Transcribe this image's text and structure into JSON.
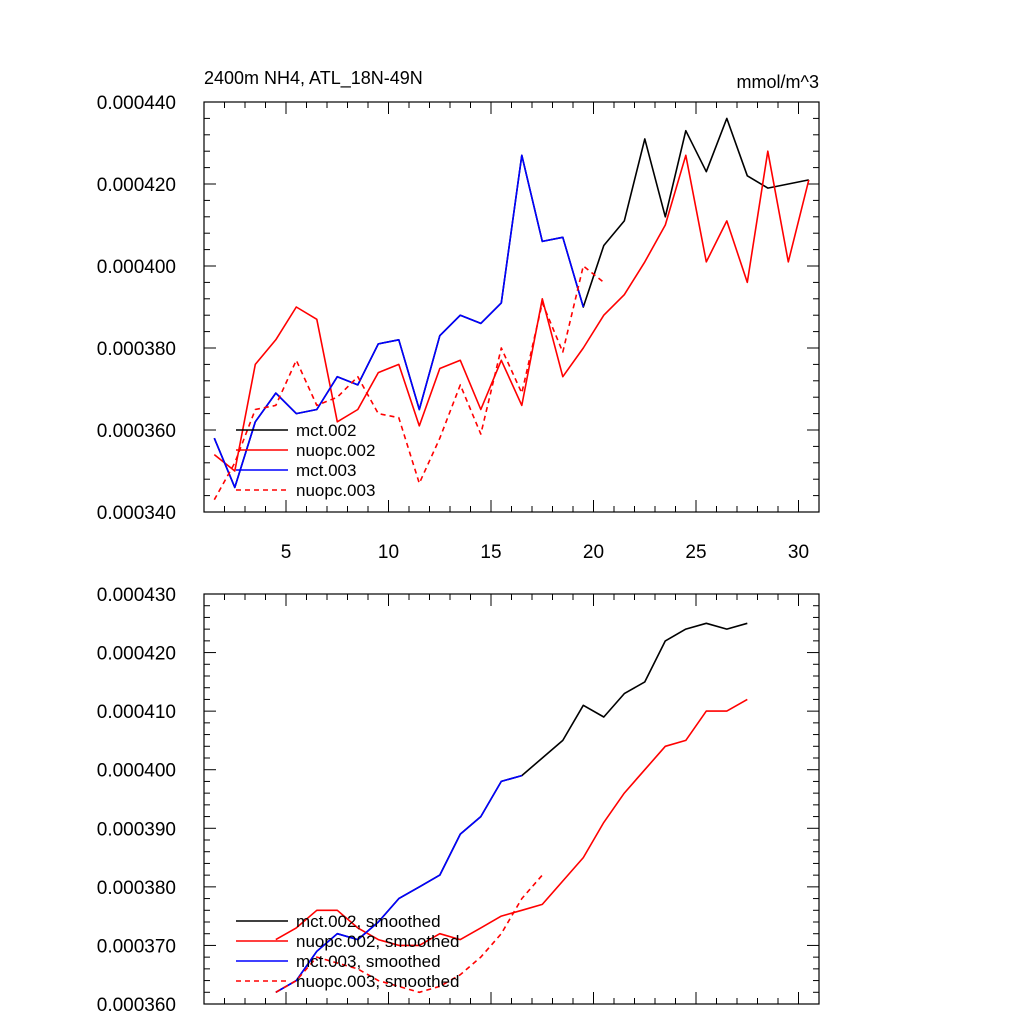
{
  "chart_data": [
    {
      "type": "line",
      "title": "2400m NH4, ATL_18N-49N",
      "units": "mmol/m^3",
      "xlabel": "",
      "ylabel": "",
      "xlim": [
        1,
        31
      ],
      "ylim": [
        0.00034,
        0.00044
      ],
      "x_ticks": [
        5,
        10,
        15,
        20,
        25,
        30
      ],
      "y_ticks": [
        "0.000340",
        "0.000360",
        "0.000380",
        "0.000400",
        "0.000420",
        "0.000440"
      ],
      "legend_position": "bottom-left",
      "series": [
        {
          "name": "mct.002",
          "color": "#000000",
          "dash": "solid",
          "x": [
            1.5,
            2.5,
            3.5,
            4.5,
            5.5,
            6.5,
            7.5,
            8.5,
            9.5,
            10.5,
            11.5,
            12.5,
            13.5,
            14.5,
            15.5,
            16.5,
            17.5,
            18.5,
            19.5,
            20.5,
            21.5,
            22.5,
            23.5,
            24.5,
            25.5,
            26.5,
            27.5,
            28.5,
            29.5,
            30.5
          ],
          "y": [
            0.000358,
            0.000346,
            0.000362,
            0.000369,
            0.000364,
            0.000365,
            0.000373,
            0.000371,
            0.000381,
            0.000382,
            0.000365,
            0.000383,
            0.000388,
            0.000386,
            0.000391,
            0.000427,
            0.000406,
            0.000407,
            0.00039,
            0.000405,
            0.000411,
            0.000431,
            0.000412,
            0.000433,
            0.000423,
            0.000436,
            0.000422,
            0.000419,
            0.00042,
            0.000421
          ]
        },
        {
          "name": "nuopc.002",
          "color": "#ff0000",
          "dash": "solid",
          "x": [
            1.5,
            2.5,
            3.5,
            4.5,
            5.5,
            6.5,
            7.5,
            8.5,
            9.5,
            10.5,
            11.5,
            12.5,
            13.5,
            14.5,
            15.5,
            16.5,
            17.5,
            18.5,
            19.5,
            20.5,
            21.5,
            22.5,
            23.5,
            24.5,
            25.5,
            26.5,
            27.5,
            28.5,
            29.5,
            30.5
          ],
          "y": [
            0.000354,
            0.00035,
            0.000376,
            0.000382,
            0.00039,
            0.000387,
            0.000362,
            0.000365,
            0.000374,
            0.000376,
            0.000361,
            0.000375,
            0.000377,
            0.000365,
            0.000377,
            0.000366,
            0.000392,
            0.000373,
            0.00038,
            0.000388,
            0.000393,
            0.000401,
            0.00041,
            0.000427,
            0.000401,
            0.000411,
            0.000396,
            0.000428,
            0.000401,
            0.000421
          ]
        },
        {
          "name": "mct.003",
          "color": "#0000ff",
          "dash": "solid",
          "x": [
            1.5,
            2.5,
            3.5,
            4.5,
            5.5,
            6.5,
            7.5,
            8.5,
            9.5,
            10.5,
            11.5,
            12.5,
            13.5,
            14.5,
            15.5,
            16.5,
            17.5,
            18.5,
            19.5
          ],
          "y": [
            0.000358,
            0.000346,
            0.000362,
            0.000369,
            0.000364,
            0.000365,
            0.000373,
            0.000371,
            0.000381,
            0.000382,
            0.000365,
            0.000383,
            0.000388,
            0.000386,
            0.000391,
            0.000427,
            0.000406,
            0.000407,
            0.00039
          ]
        },
        {
          "name": "nuopc.003",
          "color": "#ff0000",
          "dash": "dashed",
          "x": [
            1.5,
            2.5,
            3.5,
            4.5,
            5.5,
            6.5,
            7.5,
            8.5,
            9.5,
            10.5,
            11.5,
            12.5,
            13.5,
            14.5,
            15.5,
            16.5,
            17.5,
            18.5,
            19.5,
            20.5
          ],
          "y": [
            0.000343,
            0.000352,
            0.000365,
            0.000366,
            0.000377,
            0.000366,
            0.000368,
            0.000373,
            0.000364,
            0.000363,
            0.000347,
            0.000358,
            0.000371,
            0.000359,
            0.00038,
            0.000369,
            0.000391,
            0.000379,
            0.0004,
            0.000396
          ]
        }
      ]
    },
    {
      "type": "line",
      "title": "",
      "xlabel": "",
      "ylabel": "",
      "xlim": [
        1,
        31
      ],
      "ylim": [
        0.00036,
        0.00043
      ],
      "x_ticks": [
        5,
        10,
        15,
        20,
        25,
        30
      ],
      "y_ticks": [
        "0.000360",
        "0.000370",
        "0.000380",
        "0.000390",
        "0.000400",
        "0.000410",
        "0.000420",
        "0.000430"
      ],
      "legend_position": "bottom-left",
      "series": [
        {
          "name": "mct.002, smoothed",
          "color": "#000000",
          "dash": "solid",
          "x": [
            4.5,
            5.5,
            6.5,
            7.5,
            8.5,
            9.5,
            10.5,
            11.5,
            12.5,
            13.5,
            14.5,
            15.5,
            16.5,
            17.5,
            18.5,
            19.5,
            20.5,
            21.5,
            22.5,
            23.5,
            24.5,
            25.5,
            26.5,
            27.5
          ],
          "y": [
            0.000362,
            0.000364,
            0.000369,
            0.000372,
            0.000371,
            0.000374,
            0.000378,
            0.00038,
            0.000382,
            0.000389,
            0.000392,
            0.000398,
            0.000399,
            0.000402,
            0.000405,
            0.000411,
            0.000409,
            0.000413,
            0.000415,
            0.000422,
            0.000424,
            0.000425,
            0.000424,
            0.000425
          ]
        },
        {
          "name": "nuopc.002, smoothed",
          "color": "#ff0000",
          "dash": "solid",
          "x": [
            4.5,
            5.5,
            6.5,
            7.5,
            8.5,
            9.5,
            10.5,
            11.5,
            12.5,
            13.5,
            14.5,
            15.5,
            16.5,
            17.5,
            18.5,
            19.5,
            20.5,
            21.5,
            22.5,
            23.5,
            24.5,
            25.5,
            26.5,
            27.5
          ],
          "y": [
            0.000371,
            0.000373,
            0.000376,
            0.000376,
            0.000373,
            0.000371,
            0.00037,
            0.00037,
            0.000372,
            0.000371,
            0.000373,
            0.000375,
            0.000376,
            0.000377,
            0.000381,
            0.000385,
            0.000391,
            0.000396,
            0.0004,
            0.000404,
            0.000405,
            0.00041,
            0.00041,
            0.000412
          ]
        },
        {
          "name": "mct.003, smoothed",
          "color": "#0000ff",
          "dash": "solid",
          "x": [
            4.5,
            5.5,
            6.5,
            7.5,
            8.5,
            9.5,
            10.5,
            11.5,
            12.5,
            13.5,
            14.5,
            15.5,
            16.5
          ],
          "y": [
            0.000362,
            0.000364,
            0.000369,
            0.000372,
            0.000371,
            0.000374,
            0.000378,
            0.00038,
            0.000382,
            0.000389,
            0.000392,
            0.000398,
            0.000399
          ]
        },
        {
          "name": "nuopc.003, smoothed",
          "color": "#ff0000",
          "dash": "dashed",
          "x": [
            4.5,
            5.5,
            6.5,
            7.5,
            8.5,
            9.5,
            10.5,
            11.5,
            12.5,
            13.5,
            14.5,
            15.5,
            16.5,
            17.5
          ],
          "y": [
            0.000362,
            0.000364,
            0.000368,
            0.000367,
            0.000366,
            0.000364,
            0.000363,
            0.000362,
            0.000363,
            0.000365,
            0.000368,
            0.000372,
            0.000378,
            0.000382
          ]
        }
      ]
    }
  ]
}
